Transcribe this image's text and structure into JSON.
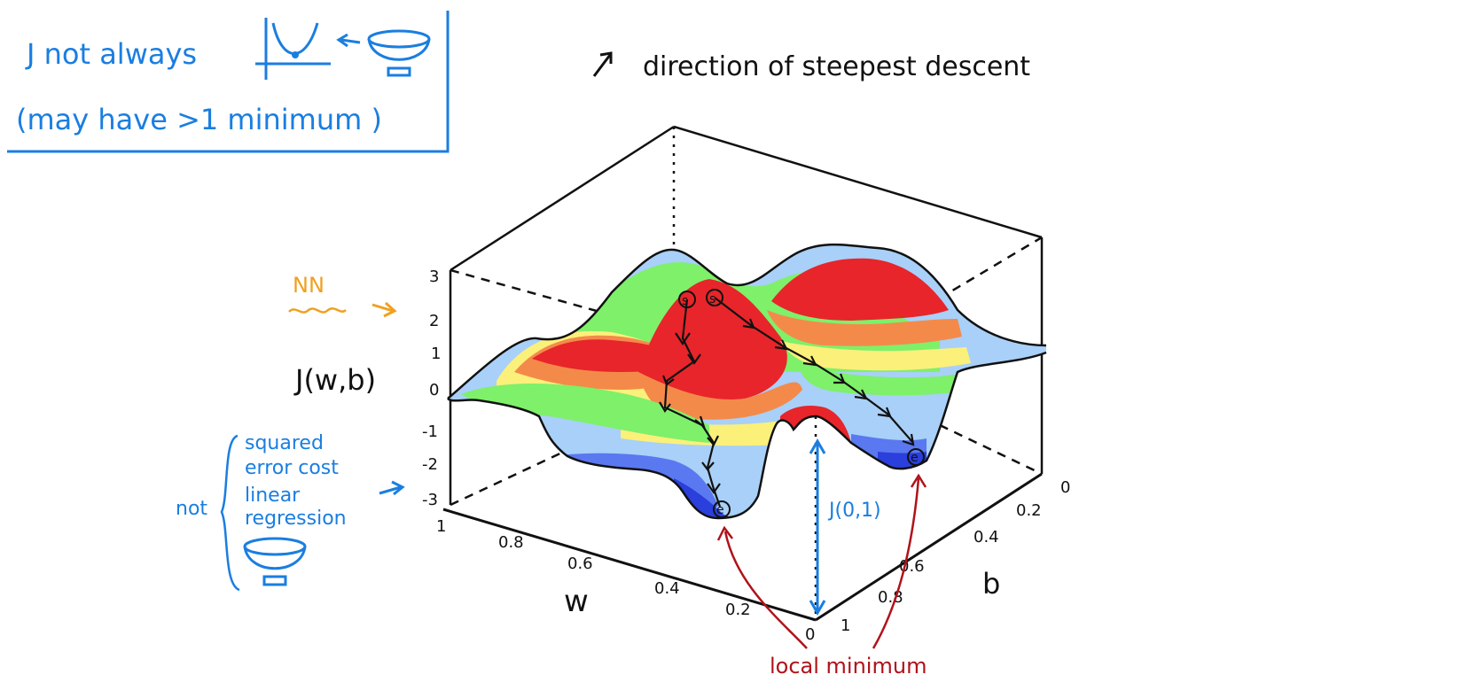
{
  "note_box": {
    "line1_prefix": "J not always",
    "line2": "(may have  >1  minimum )",
    "bowl_icon": "bowl-icon",
    "parabola_icon": "parabola-icon"
  },
  "top_caption": {
    "arrow_icon": "arrow-up-right-icon",
    "text": "direction of steepest descent"
  },
  "left_labels": {
    "nn": "NN",
    "j_label": "J(w,b)",
    "not_word": "not",
    "squared_line1": "squared",
    "squared_line2": "error cost",
    "linear_line1": "linear",
    "linear_line2": "regression"
  },
  "axes": {
    "z_ticks": [
      "3",
      "2",
      "1",
      "0",
      "-1",
      "-2",
      "-3"
    ],
    "w_ticks": [
      "1",
      "0.8",
      "0.6",
      "0.4",
      "0.2",
      "0"
    ],
    "b_ticks": [
      "0",
      "0.2",
      "0.4",
      "0.6",
      "0.8",
      "1"
    ],
    "w_label": "w",
    "b_label": "b"
  },
  "annotations": {
    "j_point": "J(0,1)",
    "local_min": "local minimum",
    "start_marker": "s",
    "end_marker": "e"
  },
  "colors": {
    "blue_ink": "#1a7ee0",
    "red_ink": "#b0121a",
    "orange_ink": "#f0a020",
    "surface_red": "#e8252a",
    "surface_orange": "#f48a4a",
    "surface_yellow": "#fbf07a",
    "surface_green": "#7ef06a",
    "surface_lightblue": "#a8d0f8",
    "surface_blue": "#2a3fdc"
  }
}
